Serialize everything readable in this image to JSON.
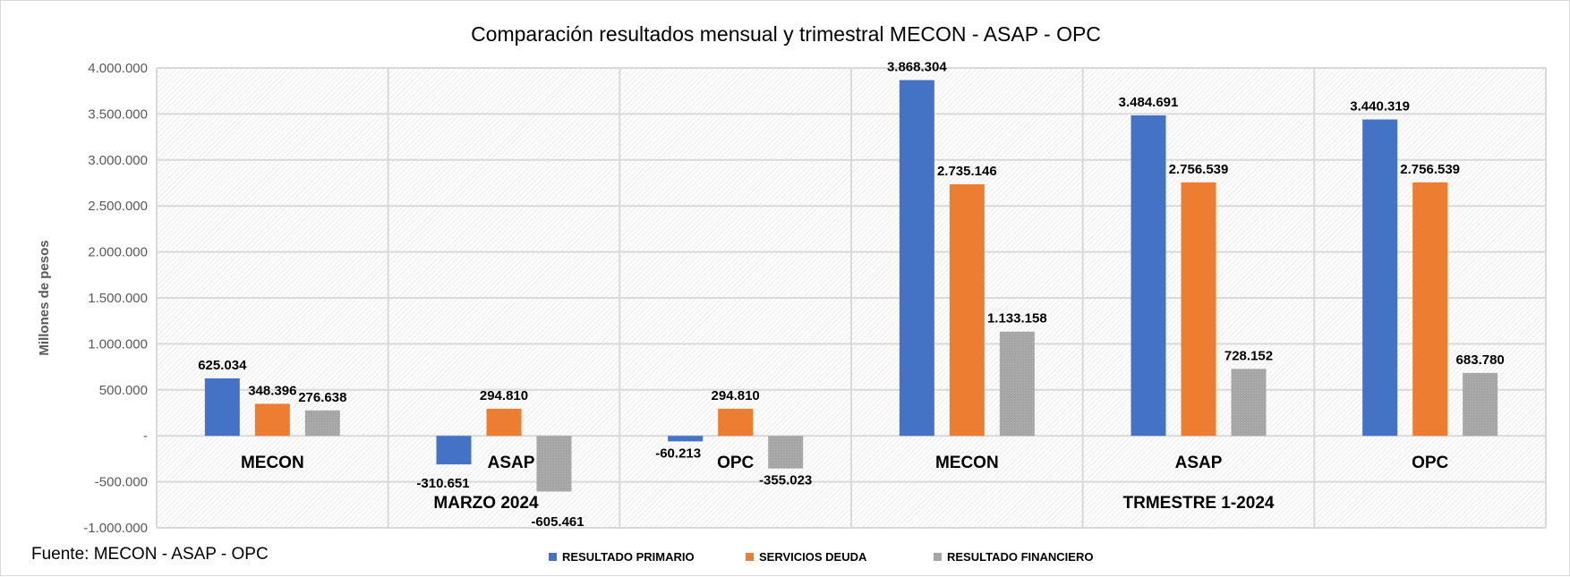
{
  "chart_data": {
    "type": "bar",
    "title": "Comparación resultados mensual y trimestral MECON - ASAP - OPC",
    "ylabel": "Millones de pesos",
    "xlabel": "",
    "ylim": [
      -1000000,
      4000000
    ],
    "yticks": [
      -1000000,
      -500000,
      0,
      500000,
      1000000,
      1500000,
      2000000,
      2500000,
      3000000,
      3500000,
      4000000
    ],
    "ytick_labels": [
      "-1.000.000",
      "-500.000",
      "-",
      "500.000",
      "1.000.000",
      "1.500.000",
      "2.000.000",
      "2.500.000",
      "3.000.000",
      "3.500.000",
      "4.000.000"
    ],
    "grid": true,
    "legend_position": "bottom",
    "categories": [
      "MECON",
      "ASAP",
      "OPC",
      "MECON",
      "ASAP",
      "OPC"
    ],
    "category_groups": [
      {
        "label": "MARZO 2024",
        "span": [
          0,
          2
        ]
      },
      {
        "label": "TRMESTRE 1-2024",
        "span": [
          3,
          5
        ]
      }
    ],
    "series": [
      {
        "name": "RESULTADO PRIMARIO",
        "color": "#4472C4",
        "values": [
          625034,
          -310651,
          -60213,
          3868304,
          3484691,
          3440319
        ],
        "labels": [
          "625.034",
          "-310.651",
          "-60.213",
          "3.868.304",
          "3.484.691",
          "3.440.319"
        ]
      },
      {
        "name": "SERVICIOS DEUDA",
        "color": "#ED7D31",
        "values": [
          348396,
          294810,
          294810,
          2735146,
          2756539,
          2756539
        ],
        "labels": [
          "348.396",
          "294.810",
          "294.810",
          "2.735.146",
          "2.756.539",
          "2.756.539"
        ]
      },
      {
        "name": "RESULTADO FINANCIERO",
        "color": "#A5A5A5",
        "values": [
          276638,
          -605461,
          -355023,
          1133158,
          728152,
          683780
        ],
        "labels": [
          "276.638",
          "-605.461",
          "-355.023",
          "1.133.158",
          "728.152",
          "683.780"
        ]
      }
    ]
  },
  "source": "Fuente: MECON - ASAP - OPC"
}
